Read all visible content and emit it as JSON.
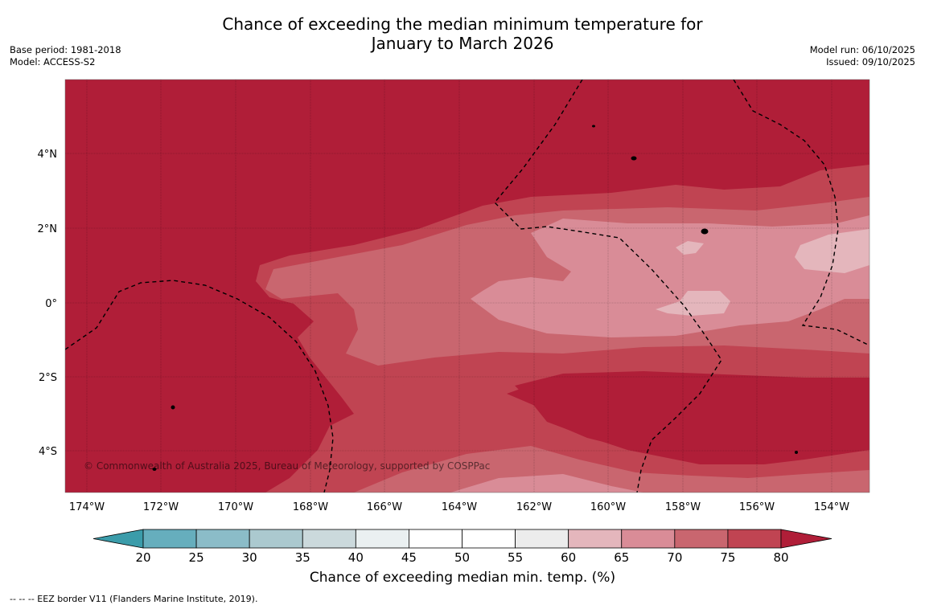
{
  "title": {
    "line1": "Chance of exceeding the median minimum temperature for",
    "line2": "January to March 2026"
  },
  "meta_left": {
    "base_period": "Base period: 1981-2018",
    "model": "Model: ACCESS-S2"
  },
  "meta_right": {
    "model_run": "Model run: 06/10/2025",
    "issued": "Issued: 09/10/2025"
  },
  "map": {
    "x_ticks": [
      "174°W",
      "172°W",
      "170°W",
      "168°W",
      "166°W",
      "164°W",
      "162°W",
      "160°W",
      "158°W",
      "156°W",
      "154°W"
    ],
    "y_ticks": [
      "4°N",
      "2°N",
      "0°",
      "2°S",
      "4°S"
    ],
    "copyright": "© Commonwealth of Australia 2025, Bureau of Meteorology, supported by COSPPac"
  },
  "colorbar": {
    "ticks": [
      "20",
      "25",
      "30",
      "35",
      "40",
      "45",
      "50",
      "55",
      "60",
      "65",
      "70",
      "75",
      "80"
    ],
    "colors": [
      "#3b9caa",
      "#66aebd",
      "#8bbcc8",
      "#abc9cf",
      "#cbd9dc",
      "#eaf0f1",
      "#ffffff",
      "#ffffff",
      "#ececec",
      "#e4b6bc",
      "#d98c97",
      "#c9666f",
      "#c04452",
      "#b01e38"
    ],
    "label": "Chance of exceeding median min. temp. (%)"
  },
  "footnote": "--  --  -- EEZ border V11 (Flanders Marine Institute, 2019)."
}
